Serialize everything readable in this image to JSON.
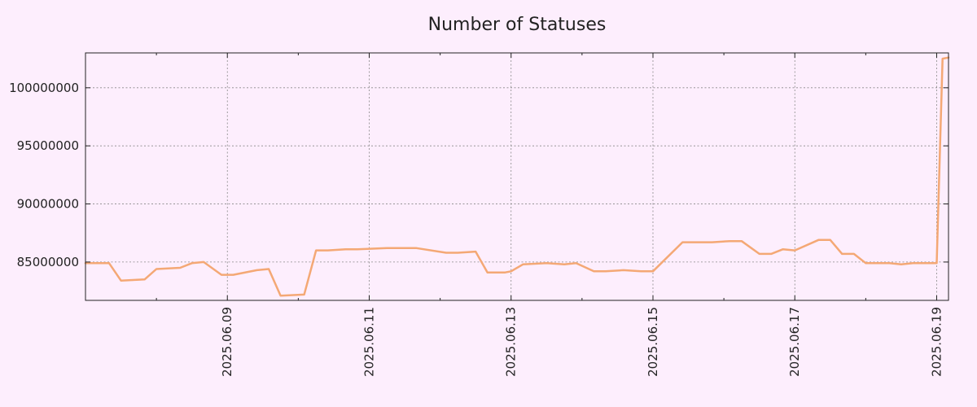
{
  "chart_data": {
    "type": "line",
    "title": "Number of Statuses",
    "xlabel": "",
    "ylabel": "",
    "grid": true,
    "colors": {
      "background": "#fdeefd",
      "line": "#f4a875"
    },
    "xlim": [
      "2025-06-07 00:00",
      "2025-06-19 04:00"
    ],
    "ylim": [
      81700000,
      103000000
    ],
    "x_ticks": [
      "2025.06.09",
      "2025.06.11",
      "2025.06.13",
      "2025.06.15",
      "2025.06.17",
      "2025.06.19"
    ],
    "y_ticks": [
      85000000,
      90000000,
      95000000,
      100000000
    ],
    "y_tick_labels": [
      "85000000",
      "90000000",
      "95000000",
      "100000000"
    ],
    "series": [
      {
        "x": [
          "2025-06-07 00:00",
          "2025-06-07 08:00",
          "2025-06-07 12:00",
          "2025-06-07 20:00",
          "2025-06-08 00:00",
          "2025-06-08 08:00",
          "2025-06-08 12:00",
          "2025-06-08 16:00",
          "2025-06-08 22:00",
          "2025-06-09 02:00",
          "2025-06-09 10:00",
          "2025-06-09 14:00",
          "2025-06-09 18:00",
          "2025-06-10 02:00",
          "2025-06-10 06:00",
          "2025-06-10 10:00",
          "2025-06-10 16:00",
          "2025-06-10 20:00",
          "2025-06-11 06:00",
          "2025-06-11 16:00",
          "2025-06-12 02:00",
          "2025-06-12 06:00",
          "2025-06-12 12:00",
          "2025-06-12 16:00",
          "2025-06-12 22:00",
          "2025-06-13 00:00",
          "2025-06-13 04:00",
          "2025-06-13 12:00",
          "2025-06-13 18:00",
          "2025-06-13 22:00",
          "2025-06-14 04:00",
          "2025-06-14 08:00",
          "2025-06-14 14:00",
          "2025-06-14 20:00",
          "2025-06-15 00:00",
          "2025-06-15 10:00",
          "2025-06-15 20:00",
          "2025-06-16 02:00",
          "2025-06-16 06:00",
          "2025-06-16 12:00",
          "2025-06-16 16:00",
          "2025-06-16 20:00",
          "2025-06-17 00:00",
          "2025-06-17 08:00",
          "2025-06-17 12:00",
          "2025-06-17 16:00",
          "2025-06-17 20:00",
          "2025-06-18 00:00",
          "2025-06-18 08:00",
          "2025-06-18 12:00",
          "2025-06-18 16:00",
          "2025-06-19 00:00",
          "2025-06-19 02:00",
          "2025-06-19 04:00"
        ],
        "y": [
          84900000,
          84900000,
          83400000,
          83500000,
          84400000,
          84500000,
          84900000,
          85000000,
          83900000,
          83900000,
          84300000,
          84400000,
          82100000,
          82200000,
          86000000,
          86000000,
          86100000,
          86100000,
          86200000,
          86200000,
          85800000,
          85800000,
          85900000,
          84100000,
          84100000,
          84200000,
          84800000,
          84900000,
          84800000,
          84900000,
          84200000,
          84200000,
          84300000,
          84200000,
          84200000,
          86700000,
          86700000,
          86800000,
          86800000,
          85700000,
          85700000,
          86100000,
          86000000,
          86900000,
          86900000,
          85700000,
          85700000,
          84900000,
          84900000,
          84800000,
          84900000,
          84900000,
          102500000,
          102600000
        ]
      }
    ]
  }
}
